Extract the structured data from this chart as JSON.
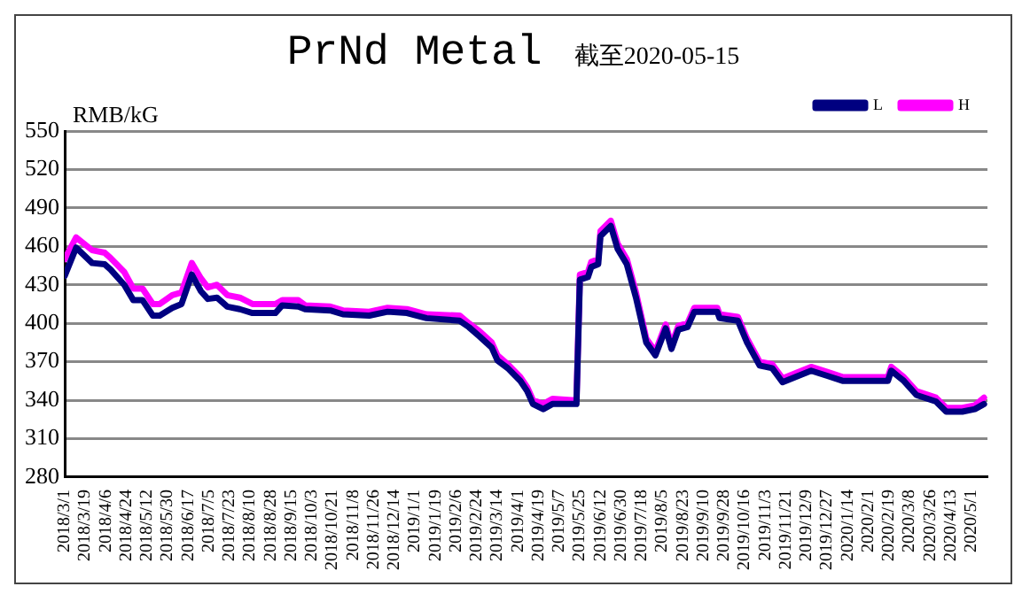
{
  "chart_data": {
    "type": "line",
    "title": "PrNd Metal",
    "subtitle": "截至2020-05-15",
    "ylabel": "RMB/kG",
    "x": [
      "2018-03-01",
      "2018-03-11",
      "2018-03-25",
      "2018-04-05",
      "2018-04-10",
      "2018-04-22",
      "2018-04-30",
      "2018-05-08",
      "2018-05-17",
      "2018-05-23",
      "2018-06-03",
      "2018-06-11",
      "2018-06-20",
      "2018-06-28",
      "2018-07-04",
      "2018-07-12",
      "2018-07-21",
      "2018-08-01",
      "2018-08-12",
      "2018-09-01",
      "2018-09-07",
      "2018-09-21",
      "2018-09-27",
      "2018-10-19",
      "2018-10-30",
      "2018-11-22",
      "2018-12-08",
      "2018-12-25",
      "2019-01-11",
      "2019-02-09",
      "2019-02-17",
      "2019-02-26",
      "2019-03-09",
      "2019-03-14",
      "2019-03-23",
      "2019-04-03",
      "2019-04-09",
      "2019-04-14",
      "2019-04-23",
      "2019-05-01",
      "2019-05-18",
      "2019-05-22",
      "2019-05-25",
      "2019-06-01",
      "2019-06-04",
      "2019-06-10",
      "2019-06-12",
      "2019-06-21",
      "2019-06-27",
      "2019-07-05",
      "2019-07-13",
      "2019-07-22",
      "2019-07-30",
      "2019-08-08",
      "2019-08-13",
      "2019-08-19",
      "2019-08-27",
      "2019-09-02",
      "2019-09-22",
      "2019-09-24",
      "2019-10-10",
      "2019-10-18",
      "2019-10-29",
      "2019-11-09",
      "2019-11-18",
      "2019-11-29",
      "2019-12-13",
      "2019-12-27",
      "2020-01-10",
      "2020-02-18",
      "2020-02-21",
      "2020-03-03",
      "2020-03-14",
      "2020-03-31",
      "2020-04-09",
      "2020-04-23",
      "2020-05-04",
      "2020-05-12"
    ],
    "series": [
      {
        "name": "L",
        "color": "#000080",
        "values": [
          437,
          459,
          447,
          446,
          442,
          430,
          418,
          418,
          406,
          406,
          412,
          415,
          438,
          425,
          419,
          420,
          413,
          411,
          408,
          408,
          414,
          413,
          411,
          410,
          407,
          406,
          409,
          408,
          404,
          402,
          397,
          390,
          381,
          371,
          365,
          355,
          347,
          337,
          333,
          337,
          337,
          337,
          434,
          436,
          444,
          446,
          468,
          476,
          458,
          446,
          420,
          385,
          375,
          396,
          380,
          395,
          397,
          409,
          409,
          404,
          402,
          385,
          367,
          365,
          354,
          358,
          363,
          359,
          355,
          355,
          363,
          355,
          344,
          339,
          331,
          331,
          333,
          337
        ]
      },
      {
        "name": "H",
        "color": "#ff00ff",
        "values": [
          450,
          467,
          457,
          455,
          451,
          440,
          427,
          427,
          415,
          415,
          422,
          424,
          447,
          435,
          428,
          430,
          422,
          420,
          415,
          415,
          418,
          418,
          414,
          413,
          410,
          409,
          412,
          411,
          407,
          406,
          400,
          394,
          385,
          375,
          368,
          358,
          350,
          340,
          337,
          341,
          340,
          340,
          438,
          440,
          448,
          450,
          472,
          480,
          462,
          450,
          424,
          388,
          378,
          399,
          383,
          398,
          400,
          412,
          412,
          407,
          405,
          388,
          370,
          368,
          357,
          361,
          366,
          362,
          358,
          358,
          366,
          358,
          347,
          342,
          334,
          334,
          336,
          342
        ]
      }
    ],
    "xlim": [
      "2018-03-01",
      "2020-05-15"
    ],
    "xticks": [
      {
        "value": "2018-03-01",
        "label": "2018/3/1"
      },
      {
        "value": "2018-03-19",
        "label": "2018/3/19"
      },
      {
        "value": "2018-04-06",
        "label": "2018/4/6"
      },
      {
        "value": "2018-04-24",
        "label": "2018/4/24"
      },
      {
        "value": "2018-05-12",
        "label": "2018/5/12"
      },
      {
        "value": "2018-05-30",
        "label": "2018/5/30"
      },
      {
        "value": "2018-06-17",
        "label": "2018/6/17"
      },
      {
        "value": "2018-07-05",
        "label": "2018/7/5"
      },
      {
        "value": "2018-07-23",
        "label": "2018/7/23"
      },
      {
        "value": "2018-08-10",
        "label": "2018/8/10"
      },
      {
        "value": "2018-08-28",
        "label": "2018/8/28"
      },
      {
        "value": "2018-09-15",
        "label": "2018/9/15"
      },
      {
        "value": "2018-10-03",
        "label": "2018/10/3"
      },
      {
        "value": "2018-10-21",
        "label": "2018/10/21"
      },
      {
        "value": "2018-11-08",
        "label": "2018/11/8"
      },
      {
        "value": "2018-11-26",
        "label": "2018/11/26"
      },
      {
        "value": "2018-12-14",
        "label": "2018/12/14"
      },
      {
        "value": "2019-01-01",
        "label": "2019/1/1"
      },
      {
        "value": "2019-01-19",
        "label": "2019/1/19"
      },
      {
        "value": "2019-02-06",
        "label": "2019/2/6"
      },
      {
        "value": "2019-02-24",
        "label": "2019/2/24"
      },
      {
        "value": "2019-03-14",
        "label": "2019/3/14"
      },
      {
        "value": "2019-04-01",
        "label": "2019/4/1"
      },
      {
        "value": "2019-04-19",
        "label": "2019/4/19"
      },
      {
        "value": "2019-05-07",
        "label": "2019/5/7"
      },
      {
        "value": "2019-05-25",
        "label": "2019/5/25"
      },
      {
        "value": "2019-06-12",
        "label": "2019/6/12"
      },
      {
        "value": "2019-06-30",
        "label": "2019/6/30"
      },
      {
        "value": "2019-07-18",
        "label": "2019/7/18"
      },
      {
        "value": "2019-08-05",
        "label": "2019/8/5"
      },
      {
        "value": "2019-08-23",
        "label": "2019/8/23"
      },
      {
        "value": "2019-09-10",
        "label": "2019/9/10"
      },
      {
        "value": "2019-09-28",
        "label": "2019/9/28"
      },
      {
        "value": "2019-10-16",
        "label": "2019/10/16"
      },
      {
        "value": "2019-11-03",
        "label": "2019/11/3"
      },
      {
        "value": "2019-11-21",
        "label": "2019/11/21"
      },
      {
        "value": "2019-12-09",
        "label": "2019/12/9"
      },
      {
        "value": "2019-12-27",
        "label": "2019/12/27"
      },
      {
        "value": "2020-01-14",
        "label": "2020/1/14"
      },
      {
        "value": "2020-02-01",
        "label": "2020/2/1"
      },
      {
        "value": "2020-02-19",
        "label": "2020/2/19"
      },
      {
        "value": "2020-03-08",
        "label": "2020/3/8"
      },
      {
        "value": "2020-03-26",
        "label": "2020/3/26"
      },
      {
        "value": "2020-04-13",
        "label": "2020/4/13"
      },
      {
        "value": "2020-05-01",
        "label": "2020/5/1"
      }
    ],
    "ylim": [
      280,
      550
    ],
    "yticks": [
      280,
      310,
      340,
      370,
      400,
      430,
      460,
      490,
      520,
      550
    ],
    "grid": "y",
    "legend": "top right",
    "marker": "none",
    "line_style": "solid"
  }
}
